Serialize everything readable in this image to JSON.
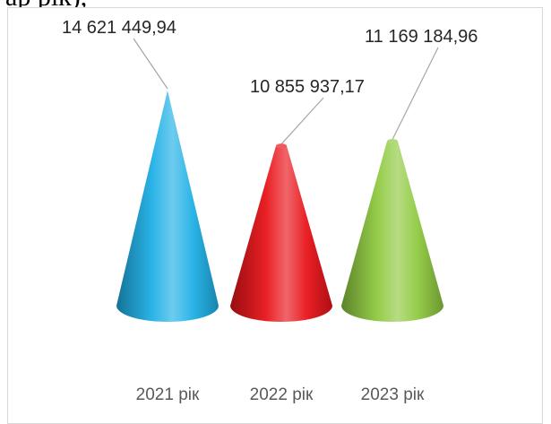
{
  "header_fragment": "ар рік),",
  "chart_data": {
    "type": "bar",
    "style": "3d-cone",
    "categories": [
      "2021 рік",
      "2022 рік",
      "2023 рік"
    ],
    "values": [
      14621449.94,
      10855937.17,
      11169184.96
    ],
    "value_labels": [
      "14 621 449,94",
      "10 855 937,17",
      "11 169 184,96"
    ],
    "colors": [
      "#1fb0e6",
      "#e8141a",
      "#8fc940"
    ],
    "title": "",
    "xlabel": "",
    "ylabel": "",
    "grid": false,
    "legend": "none"
  }
}
